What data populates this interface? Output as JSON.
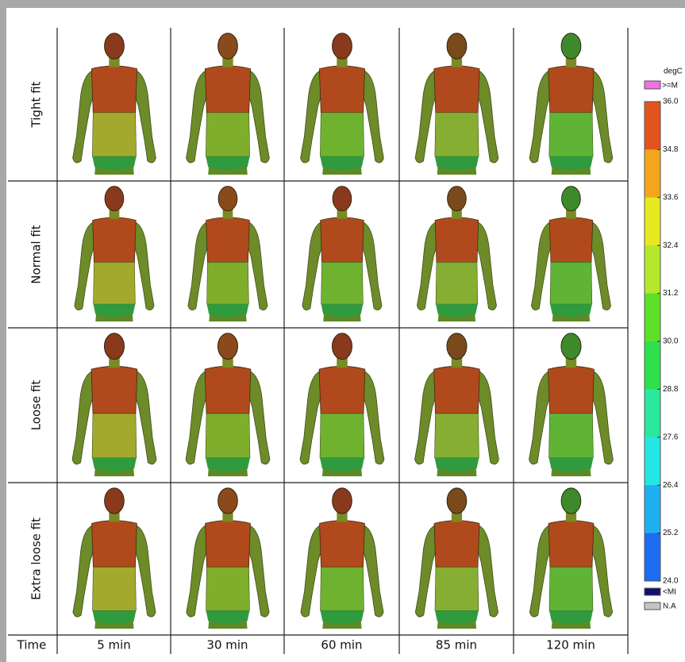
{
  "figure": {
    "rows": [
      "Tight fit",
      "Normal fit",
      "Loose fit",
      "Extra loose fit"
    ],
    "time_label": "Time",
    "columns": [
      "5 min",
      "30 min",
      "60 min",
      "85 min",
      "120 min"
    ]
  },
  "colorbar": {
    "unit": "degC",
    "over_label": ">=M",
    "ticks": [
      "36.0",
      "34.8",
      "33.6",
      "32.4",
      "31.2",
      "30.0",
      "28.8",
      "27.6",
      "26.4",
      "25.2",
      "24.0"
    ],
    "under_label": "<MI",
    "na_label": "N.A"
  }
}
